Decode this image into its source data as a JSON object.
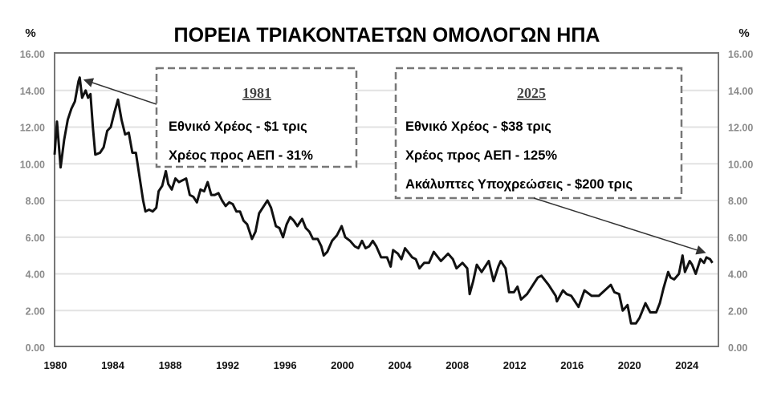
{
  "chart_data": {
    "type": "line",
    "title": "ΠΟΡΕΙΑ ΤΡΙΑΚΟΝΤΑΕΤΩΝ ΟΜΟΛΟΓΩΝ ΗΠΑ",
    "ylabel_left": "%",
    "ylabel_right": "%",
    "xlim": [
      "1980-01",
      "2026-04"
    ],
    "ylim": [
      0,
      16
    ],
    "grid": true,
    "y_ticks": [
      "0.00",
      "2.00",
      "4.00",
      "6.00",
      "8.00",
      "10.00",
      "12.00",
      "14.00",
      "16.00"
    ],
    "x_ticks": [
      "1980",
      "1984",
      "1988",
      "1992",
      "1996",
      "2000",
      "2004",
      "2008",
      "2012",
      "2016",
      "2020",
      "2024"
    ],
    "line_color": "#111111",
    "series": [
      {
        "points": [
          [
            "1980-01",
            10.5
          ],
          [
            "1980-03",
            12.3
          ],
          [
            "1980-06",
            9.8
          ],
          [
            "1980-09",
            11.3
          ],
          [
            "1980-12",
            12.4
          ],
          [
            "1981-03",
            13.0
          ],
          [
            "1981-06",
            13.4
          ],
          [
            "1981-09",
            14.5
          ],
          [
            "1981-10",
            14.7
          ],
          [
            "1981-12",
            13.6
          ],
          [
            "1982-03",
            14.0
          ],
          [
            "1982-05",
            13.6
          ],
          [
            "1982-07",
            13.8
          ],
          [
            "1982-09",
            12.0
          ],
          [
            "1982-11",
            10.5
          ],
          [
            "1983-03",
            10.6
          ],
          [
            "1983-06",
            10.9
          ],
          [
            "1983-09",
            11.8
          ],
          [
            "1983-12",
            12.0
          ],
          [
            "1984-03",
            12.8
          ],
          [
            "1984-06",
            13.5
          ],
          [
            "1984-09",
            12.4
          ],
          [
            "1984-12",
            11.6
          ],
          [
            "1985-03",
            11.7
          ],
          [
            "1985-06",
            10.6
          ],
          [
            "1985-09",
            10.6
          ],
          [
            "1985-12",
            9.3
          ],
          [
            "1986-03",
            8.0
          ],
          [
            "1986-05",
            7.4
          ],
          [
            "1986-08",
            7.5
          ],
          [
            "1986-11",
            7.4
          ],
          [
            "1987-02",
            7.6
          ],
          [
            "1987-04",
            8.5
          ],
          [
            "1987-07",
            8.8
          ],
          [
            "1987-10",
            9.6
          ],
          [
            "1987-12",
            8.9
          ],
          [
            "1988-03",
            8.6
          ],
          [
            "1988-06",
            9.2
          ],
          [
            "1988-09",
            9.0
          ],
          [
            "1988-12",
            9.1
          ],
          [
            "1989-03",
            9.2
          ],
          [
            "1989-06",
            8.3
          ],
          [
            "1989-09",
            8.2
          ],
          [
            "1989-12",
            7.9
          ],
          [
            "1990-03",
            8.6
          ],
          [
            "1990-06",
            8.5
          ],
          [
            "1990-09",
            9.0
          ],
          [
            "1990-12",
            8.3
          ],
          [
            "1991-03",
            8.3
          ],
          [
            "1991-06",
            8.4
          ],
          [
            "1991-09",
            8.0
          ],
          [
            "1991-12",
            7.7
          ],
          [
            "1992-03",
            7.9
          ],
          [
            "1992-06",
            7.8
          ],
          [
            "1992-09",
            7.4
          ],
          [
            "1992-12",
            7.4
          ],
          [
            "1993-03",
            6.9
          ],
          [
            "1993-06",
            6.7
          ],
          [
            "1993-10",
            5.9
          ],
          [
            "1994-01",
            6.3
          ],
          [
            "1994-04",
            7.3
          ],
          [
            "1994-07",
            7.6
          ],
          [
            "1994-11",
            8.0
          ],
          [
            "1995-02",
            7.6
          ],
          [
            "1995-06",
            6.6
          ],
          [
            "1995-09",
            6.5
          ],
          [
            "1995-12",
            6.0
          ],
          [
            "1996-03",
            6.7
          ],
          [
            "1996-06",
            7.1
          ],
          [
            "1996-09",
            6.9
          ],
          [
            "1996-12",
            6.6
          ],
          [
            "1997-04",
            7.0
          ],
          [
            "1997-07",
            6.5
          ],
          [
            "1997-10",
            6.3
          ],
          [
            "1998-01",
            5.9
          ],
          [
            "1998-05",
            5.9
          ],
          [
            "1998-08",
            5.5
          ],
          [
            "1998-10",
            5.0
          ],
          [
            "1999-01",
            5.2
          ],
          [
            "1999-05",
            5.8
          ],
          [
            "1999-09",
            6.1
          ],
          [
            "2000-01",
            6.6
          ],
          [
            "2000-04",
            6.0
          ],
          [
            "2000-08",
            5.8
          ],
          [
            "2000-12",
            5.5
          ],
          [
            "2001-03",
            5.4
          ],
          [
            "2001-06",
            5.8
          ],
          [
            "2001-09",
            5.4
          ],
          [
            "2001-12",
            5.5
          ],
          [
            "2002-03",
            5.8
          ],
          [
            "2002-06",
            5.5
          ],
          [
            "2002-10",
            4.9
          ],
          [
            "2003-03",
            4.9
          ],
          [
            "2003-06",
            4.4
          ],
          [
            "2003-08",
            5.3
          ],
          [
            "2003-12",
            5.1
          ],
          [
            "2004-03",
            4.8
          ],
          [
            "2004-06",
            5.4
          ],
          [
            "2004-12",
            4.9
          ],
          [
            "2005-03",
            4.8
          ],
          [
            "2005-06",
            4.3
          ],
          [
            "2005-10",
            4.6
          ],
          [
            "2006-02",
            4.6
          ],
          [
            "2006-06",
            5.2
          ],
          [
            "2006-12",
            4.7
          ],
          [
            "2007-06",
            5.1
          ],
          [
            "2007-10",
            4.8
          ],
          [
            "2008-01",
            4.3
          ],
          [
            "2008-06",
            4.6
          ],
          [
            "2008-10",
            4.3
          ],
          [
            "2008-12",
            2.9
          ],
          [
            "2009-03",
            3.6
          ],
          [
            "2009-06",
            4.5
          ],
          [
            "2009-10",
            4.1
          ],
          [
            "2010-04",
            4.7
          ],
          [
            "2010-08",
            3.6
          ],
          [
            "2010-12",
            4.4
          ],
          [
            "2011-02",
            4.7
          ],
          [
            "2011-06",
            4.3
          ],
          [
            "2011-09",
            3.0
          ],
          [
            "2012-01",
            3.0
          ],
          [
            "2012-04",
            3.3
          ],
          [
            "2012-07",
            2.6
          ],
          [
            "2012-12",
            2.9
          ],
          [
            "2013-03",
            3.2
          ],
          [
            "2013-06",
            3.5
          ],
          [
            "2013-09",
            3.8
          ],
          [
            "2013-12",
            3.9
          ],
          [
            "2014-06",
            3.4
          ],
          [
            "2014-12",
            2.8
          ],
          [
            "2015-01",
            2.5
          ],
          [
            "2015-06",
            3.1
          ],
          [
            "2015-09",
            2.9
          ],
          [
            "2016-01",
            2.8
          ],
          [
            "2016-07",
            2.2
          ],
          [
            "2016-12",
            3.1
          ],
          [
            "2017-06",
            2.8
          ],
          [
            "2017-12",
            2.8
          ],
          [
            "2018-05",
            3.1
          ],
          [
            "2018-10",
            3.4
          ],
          [
            "2019-01",
            3.0
          ],
          [
            "2019-05",
            2.9
          ],
          [
            "2019-08",
            2.0
          ],
          [
            "2019-12",
            2.3
          ],
          [
            "2020-03",
            1.3
          ],
          [
            "2020-07",
            1.3
          ],
          [
            "2020-10",
            1.6
          ],
          [
            "2021-03",
            2.4
          ],
          [
            "2021-07",
            1.9
          ],
          [
            "2021-12",
            1.9
          ],
          [
            "2022-03",
            2.4
          ],
          [
            "2022-06",
            3.2
          ],
          [
            "2022-10",
            4.1
          ],
          [
            "2022-12",
            3.8
          ],
          [
            "2023-03",
            3.7
          ],
          [
            "2023-07",
            4.0
          ],
          [
            "2023-10",
            5.0
          ],
          [
            "2023-12",
            4.1
          ],
          [
            "2024-04",
            4.7
          ],
          [
            "2024-06",
            4.5
          ],
          [
            "2024-09",
            4.0
          ],
          [
            "2025-01",
            4.8
          ],
          [
            "2025-04",
            4.6
          ],
          [
            "2025-06",
            4.9
          ],
          [
            "2025-09",
            4.8
          ],
          [
            "2025-11",
            4.6
          ]
        ]
      }
    ],
    "annotations": [
      {
        "heading": "1981",
        "lines": [
          "Εθνικό Χρέος - $1 τρις",
          "Χρέος προς ΑΕΠ - 31%"
        ],
        "points_to": [
          "1981-10",
          14.7
        ]
      },
      {
        "heading": "2025",
        "lines": [
          "Εθνικό Χρέος - $38 τρις",
          "Χρέος προς ΑΕΠ - 125%",
          "Ακάλυπτες Υποχρεώσεις - $200 τρις"
        ],
        "points_to": [
          "2025-06",
          4.9
        ]
      }
    ]
  }
}
